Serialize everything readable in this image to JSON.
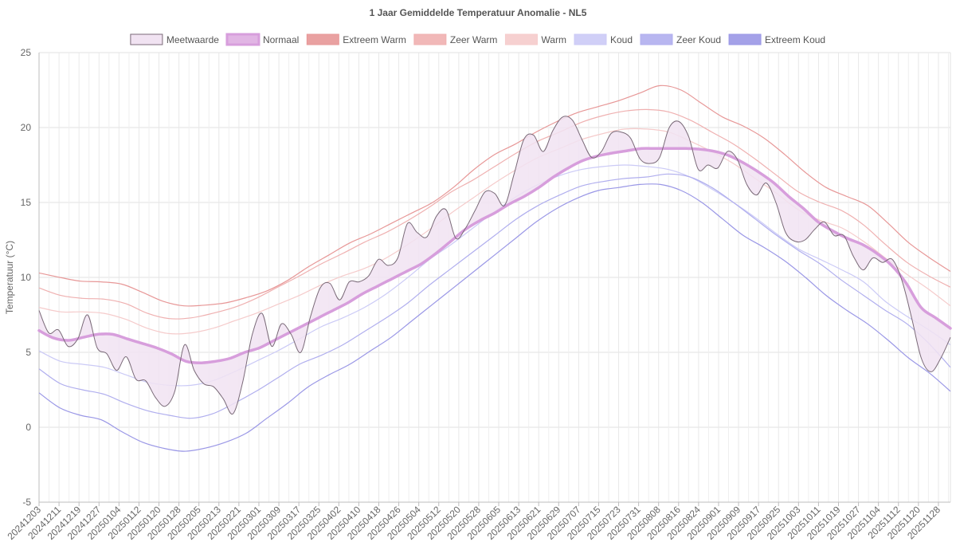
{
  "chart_data": {
    "type": "line",
    "title": "1 Jaar Gemiddelde Temperatuur Anomalie - NL5",
    "ylabel": "Temperatuur (°C)",
    "xlabel": "",
    "ylim": [
      -5,
      25
    ],
    "y_ticks": [
      -5,
      0,
      5,
      10,
      15,
      20,
      25
    ],
    "grid": true,
    "legend_position": "top",
    "x_ticks": [
      "20241203",
      "20241211",
      "20241219",
      "20241227",
      "20250104",
      "20250112",
      "20250120",
      "20250128",
      "20250205",
      "20250213",
      "20250221",
      "20250301",
      "20250309",
      "20250317",
      "20250325",
      "20250402",
      "20250410",
      "20250418",
      "20250426",
      "20250504",
      "20250512",
      "20250520",
      "20250528",
      "20250605",
      "20250613",
      "20250621",
      "20250629",
      "20250707",
      "20250715",
      "20250723",
      "20250731",
      "20250808",
      "20250816",
      "20250824",
      "20250901",
      "20250909",
      "20250917",
      "20250925",
      "20251003",
      "20251011",
      "20251019",
      "20251027",
      "20251104",
      "20251112",
      "20251120",
      "20251128"
    ],
    "series": [
      {
        "name": "Meetwaarde",
        "color": "#888888",
        "fill": "#f1e3f2",
        "values": [
          7.8,
          6.3,
          6.5,
          5.4,
          5.9,
          7.5,
          5.3,
          4.9,
          3.8,
          4.7,
          3.2,
          3.1,
          2.0,
          1.4,
          2.4,
          5.5,
          3.8,
          2.9,
          2.7,
          1.9,
          0.9,
          3.0,
          6.2,
          7.6,
          5.4,
          6.9,
          6.2,
          5.0,
          7.4,
          9.3,
          9.6,
          8.5,
          9.7,
          9.7,
          10.1,
          11.2,
          10.8,
          11.3,
          13.6,
          13.0,
          12.7,
          14.1,
          14.5,
          12.6,
          13.3,
          14.5,
          15.7,
          15.6,
          14.8,
          16.9,
          19.2,
          19.5,
          18.4,
          19.8,
          20.7,
          20.5,
          19.2,
          18.0,
          18.4,
          19.6,
          19.7,
          19.3,
          17.9,
          17.6,
          18.0,
          20.0,
          20.4,
          19.4,
          17.2,
          17.5,
          17.3,
          18.4,
          17.9,
          16.2,
          15.5,
          16.3,
          15.0,
          13.0,
          12.4,
          12.5,
          13.2,
          13.7,
          12.8,
          12.8,
          11.4,
          10.5,
          11.3,
          11.0,
          11.2,
          9.8,
          7.3,
          4.6,
          3.7,
          4.6,
          6.0
        ]
      },
      {
        "name": "Normaal",
        "color": "#d79edc",
        "fill": "#e1b5e4",
        "values": [
          6.45,
          5.95,
          5.8,
          6.0,
          6.2,
          6.2,
          5.9,
          5.6,
          5.3,
          4.9,
          4.4,
          4.3,
          4.4,
          4.6,
          5.0,
          5.3,
          5.8,
          6.3,
          6.8,
          7.3,
          7.8,
          8.3,
          8.9,
          9.4,
          9.9,
          10.4,
          10.9,
          11.6,
          12.4,
          13.2,
          13.8,
          14.3,
          14.9,
          15.4,
          16.0,
          16.7,
          17.3,
          17.8,
          18.1,
          18.3,
          18.45,
          18.6,
          18.6,
          18.6,
          18.6,
          18.55,
          18.4,
          18.1,
          17.6,
          17.0,
          16.3,
          15.4,
          14.6,
          13.7,
          13.1,
          12.6,
          12.2,
          11.6,
          10.8,
          9.6,
          8.0,
          7.3,
          6.6
        ]
      },
      {
        "name": "Extreem Warm",
        "color": "#e79797",
        "fill": "#e79797",
        "values": [
          10.3,
          10.0,
          9.75,
          9.7,
          9.55,
          9.0,
          8.4,
          8.1,
          8.15,
          8.3,
          8.65,
          9.1,
          9.8,
          10.7,
          11.5,
          12.3,
          12.9,
          13.6,
          14.3,
          15.0,
          16.0,
          17.2,
          18.2,
          18.9,
          19.7,
          20.4,
          21.0,
          21.4,
          21.8,
          22.3,
          22.8,
          22.5,
          21.6,
          20.7,
          20.1,
          19.3,
          18.2,
          17.0,
          16.0,
          15.4,
          14.8,
          13.6,
          12.3,
          11.3,
          10.4
        ]
      },
      {
        "name": "Zeer Warm",
        "color": "#efb0b0",
        "fill": "#efb0b0",
        "values": [
          9.3,
          8.8,
          8.6,
          8.55,
          8.25,
          7.6,
          7.25,
          7.3,
          7.6,
          8.0,
          8.6,
          9.35,
          10.1,
          10.9,
          11.6,
          12.35,
          13.0,
          13.8,
          14.7,
          15.7,
          16.5,
          17.4,
          18.3,
          19.1,
          19.7,
          20.35,
          20.8,
          21.1,
          21.2,
          21.05,
          20.5,
          19.7,
          18.9,
          17.9,
          16.8,
          15.7,
          15.0,
          14.45,
          13.5,
          12.2,
          11.0,
          10.1,
          9.35
        ]
      },
      {
        "name": "Warm",
        "color": "#f5cbcb",
        "fill": "#f5cbcb",
        "values": [
          8.0,
          7.7,
          7.7,
          7.6,
          7.2,
          6.6,
          6.25,
          6.3,
          6.6,
          7.1,
          7.6,
          8.2,
          8.8,
          9.5,
          10.1,
          10.6,
          11.3,
          12.2,
          13.2,
          14.3,
          15.3,
          16.3,
          17.2,
          18.0,
          18.6,
          19.2,
          19.6,
          19.9,
          19.9,
          19.7,
          19.1,
          18.4,
          17.6,
          16.6,
          15.6,
          14.5,
          13.8,
          13.3,
          12.4,
          11.3,
          10.2,
          9.2,
          8.1
        ]
      },
      {
        "name": "Koud",
        "color": "#cbcaf6",
        "fill": "#cbcaf6",
        "values": [
          5.1,
          4.4,
          4.2,
          4.0,
          3.5,
          3.0,
          2.8,
          2.8,
          3.1,
          3.7,
          4.4,
          5.1,
          5.9,
          6.7,
          7.3,
          8.0,
          8.9,
          10.0,
          11.2,
          12.2,
          13.3,
          14.4,
          15.4,
          16.2,
          16.8,
          17.2,
          17.4,
          17.5,
          17.4,
          17.2,
          16.7,
          15.9,
          15.0,
          14.0,
          12.9,
          11.9,
          11.2,
          10.5,
          9.7,
          8.4,
          7.4,
          6.5,
          5.5
        ]
      },
      {
        "name": "Zeer Koud",
        "color": "#b0aeee",
        "fill": "#b0aeee",
        "values": [
          3.9,
          2.9,
          2.5,
          2.2,
          1.6,
          1.1,
          0.8,
          0.6,
          0.9,
          1.6,
          2.4,
          3.3,
          4.2,
          4.8,
          5.5,
          6.4,
          7.3,
          8.3,
          9.5,
          10.6,
          11.7,
          12.8,
          13.9,
          14.8,
          15.5,
          16.1,
          16.4,
          16.6,
          16.7,
          16.9,
          16.7,
          16.0,
          15.0,
          13.9,
          12.8,
          11.8,
          10.9,
          9.8,
          8.8,
          7.8,
          6.9,
          5.6,
          4.0
        ]
      },
      {
        "name": "Extreem Koud",
        "color": "#9a97e6",
        "fill": "#9a97e6",
        "values": [
          2.3,
          1.3,
          0.8,
          0.5,
          -0.3,
          -1.0,
          -1.4,
          -1.6,
          -1.4,
          -1.0,
          -0.4,
          0.6,
          1.6,
          2.7,
          3.5,
          4.2,
          5.1,
          6.0,
          7.1,
          8.2,
          9.3,
          10.4,
          11.5,
          12.6,
          13.7,
          14.6,
          15.3,
          15.8,
          16.0,
          16.2,
          16.2,
          15.8,
          15.0,
          13.9,
          12.8,
          12.0,
          11.1,
          10.0,
          8.8,
          7.8,
          6.9,
          5.8,
          4.6,
          3.6,
          2.4
        ]
      }
    ]
  }
}
